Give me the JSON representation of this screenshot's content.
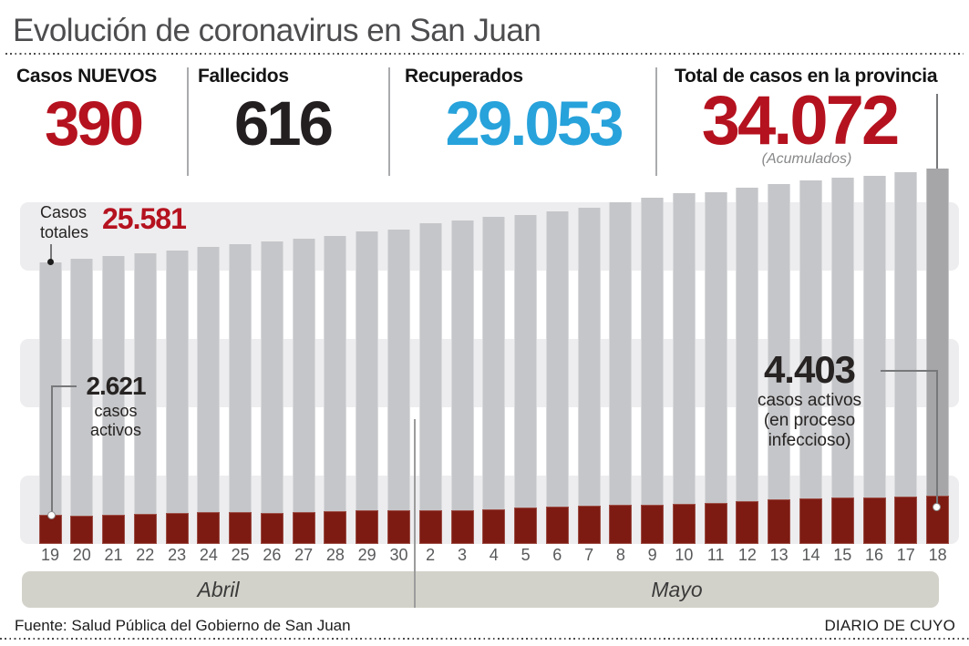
{
  "title": "Evolución de coronavirus en San Juan",
  "colors": {
    "stat_red": "#b5121f",
    "stat_black": "#231f20",
    "stat_blue": "#27a2db",
    "bar_gray": "#c5c6c9",
    "bar_gray_highlight": "#a6a6a9",
    "bar_red": "#7d1b12",
    "stripe_gray": "#ededef",
    "month_band": "#d3d2ca"
  },
  "stats": [
    {
      "label": "Casos NUEVOS",
      "value": "390",
      "color": "#b5121f"
    },
    {
      "label": "Fallecidos",
      "value": "616",
      "color": "#231f20"
    },
    {
      "label": "Recuperados",
      "value": "29.053",
      "color": "#27a2db"
    },
    {
      "label": "Total de casos en la provincia",
      "value": "34.072",
      "note": "(Acumulados)",
      "color": "#b5121f"
    }
  ],
  "months": [
    {
      "label": "Abril",
      "days": 12
    },
    {
      "label": "Mayo",
      "days": 17
    }
  ],
  "footer": {
    "source": "Fuente: Salud Pública del Gobierno de San Juan",
    "credit": "DIARIO DE CUYO"
  },
  "chart_data": {
    "type": "bar",
    "title": "Evolución de coronavirus en San Juan",
    "categories": [
      "19",
      "20",
      "21",
      "22",
      "23",
      "24",
      "25",
      "26",
      "27",
      "28",
      "29",
      "30",
      "2",
      "3",
      "4",
      "5",
      "6",
      "7",
      "8",
      "9",
      "10",
      "11",
      "12",
      "13",
      "14",
      "15",
      "16",
      "17",
      "18"
    ],
    "month_groups": [
      {
        "label": "Abril",
        "days": 12
      },
      {
        "label": "Mayo",
        "days": 17
      }
    ],
    "ylim": [
      0,
      34072
    ],
    "grid": "three horizontal gray bands, no axis lines",
    "legend": "none",
    "series": [
      {
        "name": "Casos totales (acumulados)",
        "color": "#c5c6c9",
        "values": [
          25581,
          25900,
          26110,
          26340,
          26670,
          26950,
          27200,
          27420,
          27700,
          27990,
          28350,
          28540,
          29100,
          29380,
          29660,
          29850,
          30160,
          30550,
          31000,
          31390,
          31810,
          31950,
          32310,
          32680,
          33010,
          33230,
          33430,
          33730,
          34072
        ]
      },
      {
        "name": "Casos activos (en proceso infeccioso)",
        "color": "#7d1b12",
        "values": [
          2621,
          2580,
          2620,
          2700,
          2810,
          2890,
          2890,
          2810,
          2890,
          2970,
          3030,
          3080,
          3030,
          3080,
          3160,
          3270,
          3360,
          3450,
          3570,
          3570,
          3660,
          3750,
          3870,
          4050,
          4160,
          4250,
          4250,
          4340,
          4403
        ]
      }
    ],
    "highlight_last_bar_color": "#a6a6a9",
    "annotations": {
      "casos_totales": {
        "line1": "Casos",
        "line2": "totales",
        "value": "25.581"
      },
      "activos_inicio": {
        "value": "2.621",
        "line1": "casos",
        "line2": "activos"
      },
      "activos_fin": {
        "value": "4.403",
        "line1": "casos activos",
        "line2": "(en proceso",
        "line3": "infeccioso)"
      }
    }
  }
}
